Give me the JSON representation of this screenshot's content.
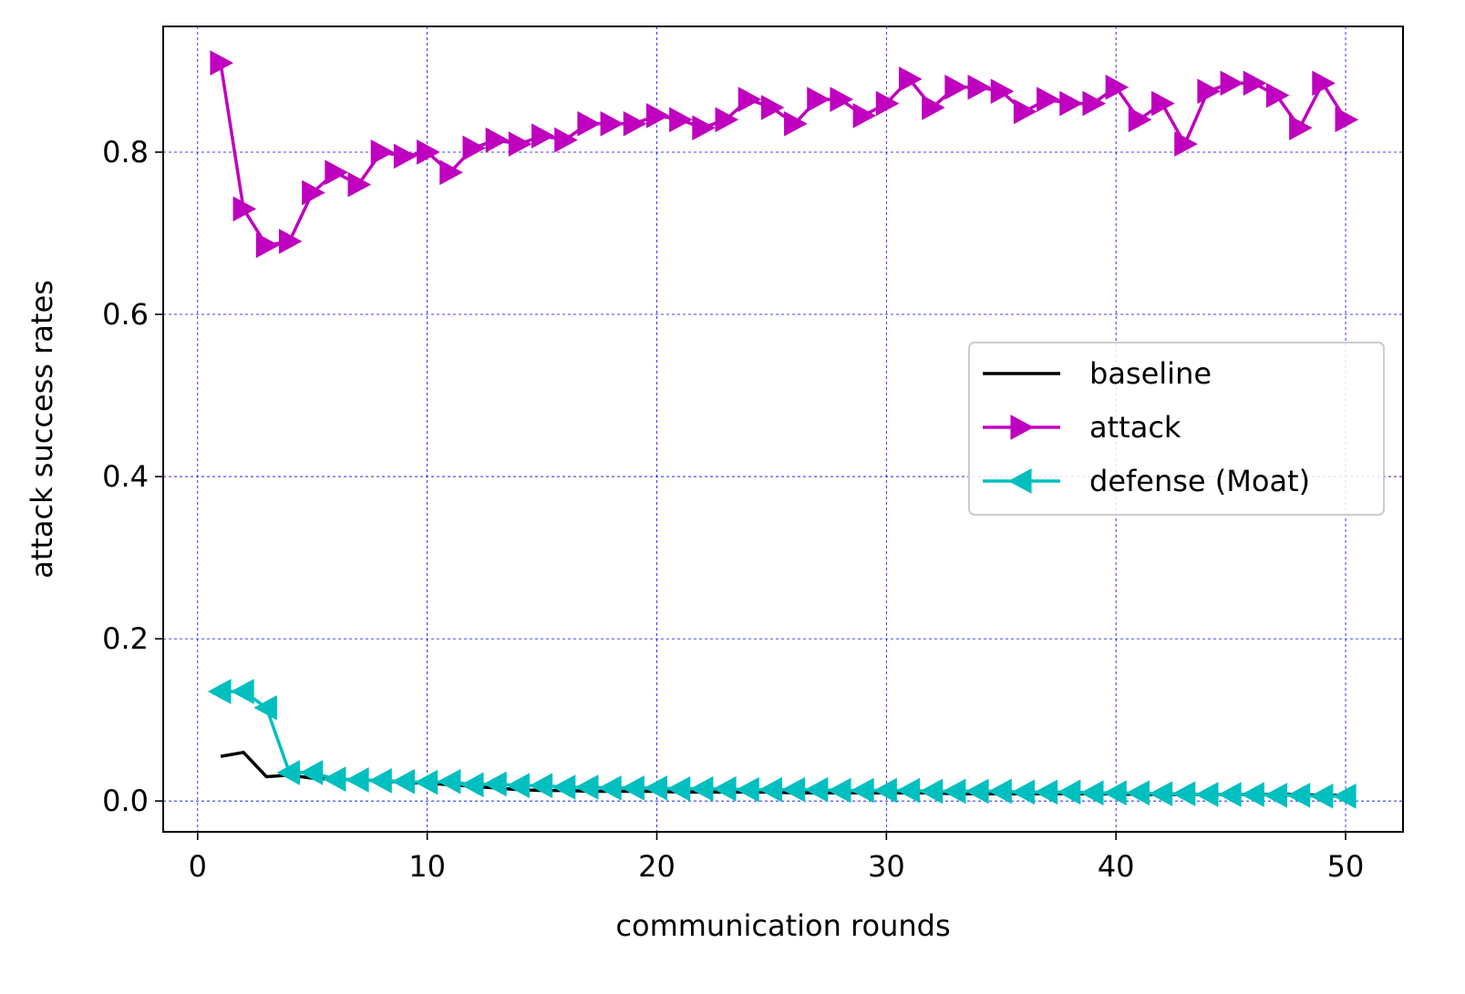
{
  "chart_data": {
    "type": "line",
    "title": "",
    "xlabel": "communication rounds",
    "ylabel": "attack success rates",
    "xlim": [
      -1.5,
      52.5
    ],
    "ylim": [
      -0.038,
      0.955
    ],
    "xticks": [
      0,
      10,
      20,
      30,
      40,
      50
    ],
    "xtick_labels": [
      "0",
      "10",
      "20",
      "30",
      "40",
      "50"
    ],
    "yticks": [
      0.0,
      0.2,
      0.4,
      0.6,
      0.8
    ],
    "ytick_labels": [
      "0.0",
      "0.2",
      "0.4",
      "0.6",
      "0.8"
    ],
    "grid": true,
    "legend_position": "center-right",
    "x": [
      1,
      2,
      3,
      4,
      5,
      6,
      7,
      8,
      9,
      10,
      11,
      12,
      13,
      14,
      15,
      16,
      17,
      18,
      19,
      20,
      21,
      22,
      23,
      24,
      25,
      26,
      27,
      28,
      29,
      30,
      31,
      32,
      33,
      34,
      35,
      36,
      37,
      38,
      39,
      40,
      41,
      42,
      43,
      44,
      45,
      46,
      47,
      48,
      49,
      50
    ],
    "series": [
      {
        "name": "baseline",
        "color": "#000000",
        "marker": "none",
        "values": [
          0.055,
          0.06,
          0.03,
          0.032,
          0.028,
          0.027,
          0.026,
          0.025,
          0.023,
          0.022,
          0.02,
          0.018,
          0.016,
          0.014,
          0.013,
          0.013,
          0.012,
          0.012,
          0.012,
          0.012,
          0.011,
          0.011,
          0.011,
          0.011,
          0.011,
          0.01,
          0.01,
          0.01,
          0.01,
          0.01,
          0.01,
          0.01,
          0.009,
          0.009,
          0.009,
          0.009,
          0.009,
          0.009,
          0.009,
          0.009,
          0.008,
          0.008,
          0.008,
          0.008,
          0.008,
          0.008,
          0.008,
          0.008,
          0.007,
          0.007
        ]
      },
      {
        "name": "attack",
        "color": "#bf00bf",
        "marker": "triangle-right",
        "values": [
          0.91,
          0.73,
          0.685,
          0.69,
          0.75,
          0.775,
          0.76,
          0.8,
          0.795,
          0.8,
          0.775,
          0.805,
          0.815,
          0.81,
          0.82,
          0.815,
          0.835,
          0.835,
          0.835,
          0.845,
          0.84,
          0.83,
          0.84,
          0.865,
          0.855,
          0.835,
          0.865,
          0.865,
          0.845,
          0.86,
          0.89,
          0.855,
          0.88,
          0.88,
          0.875,
          0.85,
          0.865,
          0.86,
          0.86,
          0.88,
          0.84,
          0.86,
          0.81,
          0.875,
          0.885,
          0.885,
          0.87,
          0.83,
          0.885,
          0.84
        ]
      },
      {
        "name": "defense (Moat)",
        "color": "#00bfbf",
        "marker": "triangle-left",
        "values": [
          0.135,
          0.135,
          0.115,
          0.035,
          0.035,
          0.027,
          0.026,
          0.025,
          0.024,
          0.023,
          0.024,
          0.02,
          0.021,
          0.019,
          0.019,
          0.017,
          0.017,
          0.016,
          0.016,
          0.016,
          0.015,
          0.015,
          0.015,
          0.014,
          0.014,
          0.014,
          0.014,
          0.013,
          0.013,
          0.013,
          0.013,
          0.012,
          0.012,
          0.012,
          0.012,
          0.011,
          0.011,
          0.011,
          0.01,
          0.01,
          0.01,
          0.009,
          0.009,
          0.008,
          0.008,
          0.008,
          0.007,
          0.007,
          0.006,
          0.006
        ]
      }
    ]
  }
}
